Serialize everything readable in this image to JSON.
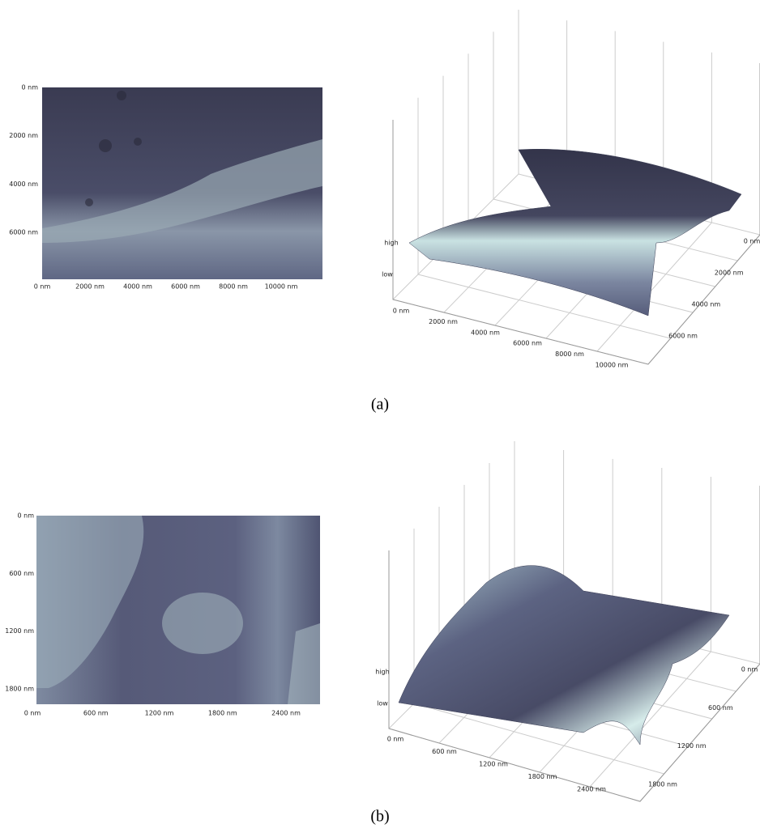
{
  "panels": [
    {
      "label": "(a)",
      "image": {
        "yticks": [
          "0 nm",
          "2000 nm",
          "4000 nm",
          "6000 nm"
        ],
        "xticks": [
          "0 nm",
          "2000 nm",
          "4000 nm",
          "6000 nm",
          "8000 nm",
          "10000 nm"
        ]
      },
      "surface": {
        "zticks": [
          "high",
          "low"
        ],
        "xticks": [
          "0 nm",
          "2000 nm",
          "4000 nm",
          "6000 nm",
          "8000 nm",
          "10000 nm"
        ],
        "yticks": [
          "0 nm",
          "2000 nm",
          "4000 nm",
          "6000 nm"
        ]
      }
    },
    {
      "label": "(b)",
      "image": {
        "yticks": [
          "0 nm",
          "600 nm",
          "1200 nm",
          "1800 nm"
        ],
        "xticks": [
          "0 nm",
          "600 nm",
          "1200 nm",
          "1800 nm",
          "2400 nm"
        ]
      },
      "surface": {
        "zticks": [
          "high",
          "low"
        ],
        "xticks": [
          "0 nm",
          "600 nm",
          "1200 nm",
          "1800 nm",
          "2400 nm"
        ],
        "yticks": [
          "0 nm",
          "600 nm",
          "1200 nm",
          "1800 nm"
        ]
      }
    }
  ]
}
